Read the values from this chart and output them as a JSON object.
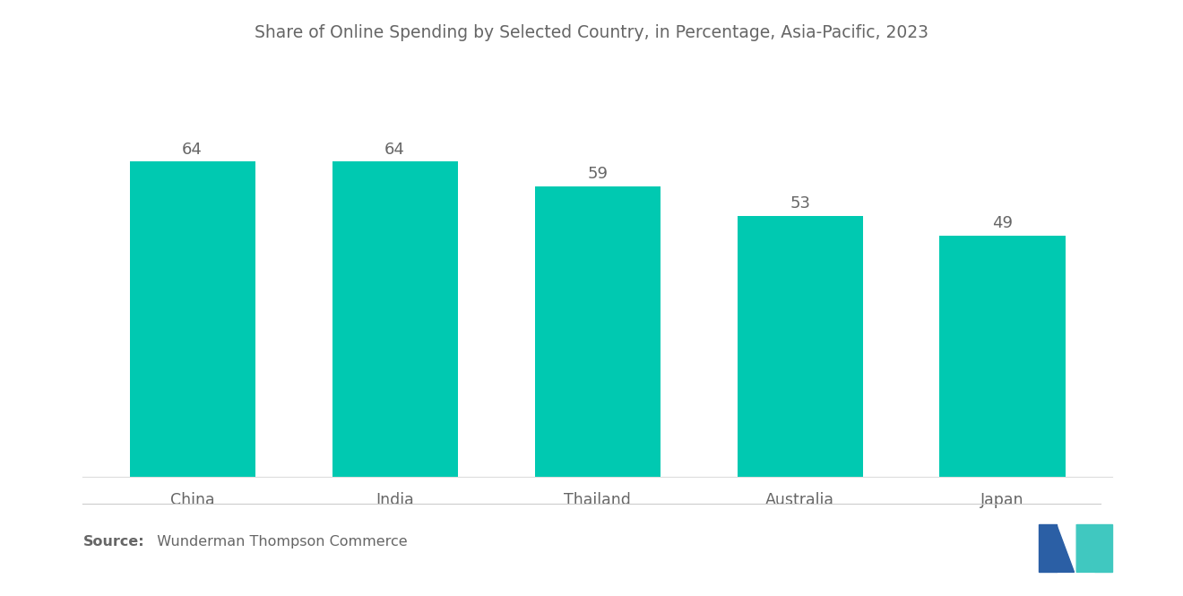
{
  "title": "Share of Online Spending by Selected Country, in Percentage, Asia-Pacific, 2023",
  "categories": [
    "China",
    "India",
    "Thailand",
    "Australia",
    "Japan"
  ],
  "values": [
    64,
    64,
    59,
    53,
    49
  ],
  "bar_color": "#00C9B1",
  "value_labels": [
    "64",
    "64",
    "59",
    "53",
    "49"
  ],
  "source_bold": "Source:",
  "source_normal": "  Wunderman Thompson Commerce",
  "background_color": "#ffffff",
  "title_fontsize": 13.5,
  "label_fontsize": 12.5,
  "value_fontsize": 13,
  "source_fontsize": 11.5,
  "ylim": [
    0,
    75
  ],
  "bar_width": 0.62,
  "text_color": "#666666",
  "logo_dark_blue": "#2B5FA5",
  "logo_teal": "#40C8C0"
}
